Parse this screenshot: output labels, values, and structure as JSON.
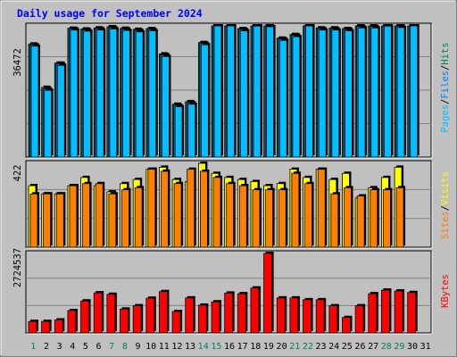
{
  "chart_data": [
    {
      "type": "bar",
      "title": "Daily usage for September 2024",
      "categories": [
        "1",
        "2",
        "3",
        "4",
        "5",
        "6",
        "7",
        "8",
        "9",
        "10",
        "11",
        "12",
        "13",
        "14",
        "15",
        "16",
        "17",
        "18",
        "19",
        "20",
        "21",
        "22",
        "23",
        "24",
        "25",
        "26",
        "27",
        "28",
        "29",
        "30",
        "31"
      ],
      "weekend_days": [
        "1",
        "7",
        "8",
        "14",
        "15",
        "21",
        "22",
        "28",
        "29"
      ],
      "y_tick_label": "36472",
      "ylim": [
        0,
        36472
      ],
      "series": [
        {
          "name": "Hits",
          "color": "#00805c",
          "values": [
            30800,
            19000,
            25600,
            35100,
            34900,
            35200,
            35500,
            35100,
            34800,
            35000,
            28100,
            14400,
            15100,
            31200,
            36500,
            36600,
            35000,
            36300,
            36100,
            32400,
            33400,
            36500,
            35200,
            35200,
            35000,
            35800,
            35800,
            36300,
            35900,
            36700,
            0
          ]
        },
        {
          "name": "Files",
          "color": "#0080ff",
          "values": [
            30600,
            18600,
            25500,
            35000,
            34700,
            35000,
            35300,
            34900,
            34500,
            34800,
            27800,
            14100,
            14800,
            31000,
            36200,
            36400,
            34800,
            36100,
            35900,
            32200,
            33200,
            36300,
            35000,
            35000,
            34800,
            35600,
            35600,
            36100,
            35700,
            36400,
            0
          ]
        },
        {
          "name": "Pages",
          "color": "#00c0ff",
          "values": [
            30200,
            18200,
            25000,
            34600,
            34300,
            34600,
            34900,
            34500,
            34100,
            34400,
            27400,
            13700,
            14400,
            30600,
            35800,
            36000,
            34400,
            35700,
            35500,
            31800,
            32800,
            35900,
            34600,
            34600,
            34400,
            35200,
            35200,
            35700,
            35300,
            36000,
            0
          ]
        }
      ]
    },
    {
      "type": "bar",
      "categories": [
        "1",
        "2",
        "3",
        "4",
        "5",
        "6",
        "7",
        "8",
        "9",
        "10",
        "11",
        "12",
        "13",
        "14",
        "15",
        "16",
        "17",
        "18",
        "19",
        "20",
        "21",
        "22",
        "23",
        "24",
        "25",
        "26",
        "27",
        "28",
        "29",
        "30",
        "31"
      ],
      "y_tick_label": "422",
      "ylim": [
        0,
        422
      ],
      "series": [
        {
          "name": "Visits",
          "color": "#ffff00",
          "values": [
            300,
            260,
            260,
            300,
            340,
            300,
            270,
            310,
            330,
            380,
            390,
            330,
            320,
            420,
            360,
            340,
            330,
            320,
            300,
            310,
            380,
            340,
            380,
            330,
            360,
            240,
            290,
            340,
            390,
            0,
            0
          ]
        },
        {
          "name": "Sites",
          "color": "#ff8000",
          "values": [
            260,
            260,
            260,
            300,
            310,
            310,
            260,
            280,
            290,
            380,
            370,
            310,
            380,
            370,
            340,
            310,
            300,
            280,
            280,
            280,
            360,
            310,
            380,
            260,
            290,
            250,
            280,
            280,
            290,
            0,
            0
          ]
        }
      ]
    },
    {
      "type": "bar",
      "categories": [
        "1",
        "2",
        "3",
        "4",
        "5",
        "6",
        "7",
        "8",
        "9",
        "10",
        "11",
        "12",
        "13",
        "14",
        "15",
        "16",
        "17",
        "18",
        "19",
        "20",
        "21",
        "22",
        "23",
        "24",
        "25",
        "26",
        "27",
        "28",
        "29",
        "30",
        "31"
      ],
      "y_tick_label": "2724537",
      "ylim": [
        0,
        2724537
      ],
      "series": [
        {
          "name": "KBytes",
          "color": "#ff0000",
          "values": [
            380000,
            380000,
            430000,
            740000,
            1060000,
            1330000,
            1280000,
            790000,
            900000,
            1150000,
            1370000,
            710000,
            1160000,
            920000,
            1030000,
            1320000,
            1300000,
            1490000,
            2650000,
            1160000,
            1160000,
            1100000,
            1100000,
            900000,
            510000,
            900000,
            1300000,
            1420000,
            1390000,
            1340000,
            0
          ]
        }
      ]
    }
  ]
}
